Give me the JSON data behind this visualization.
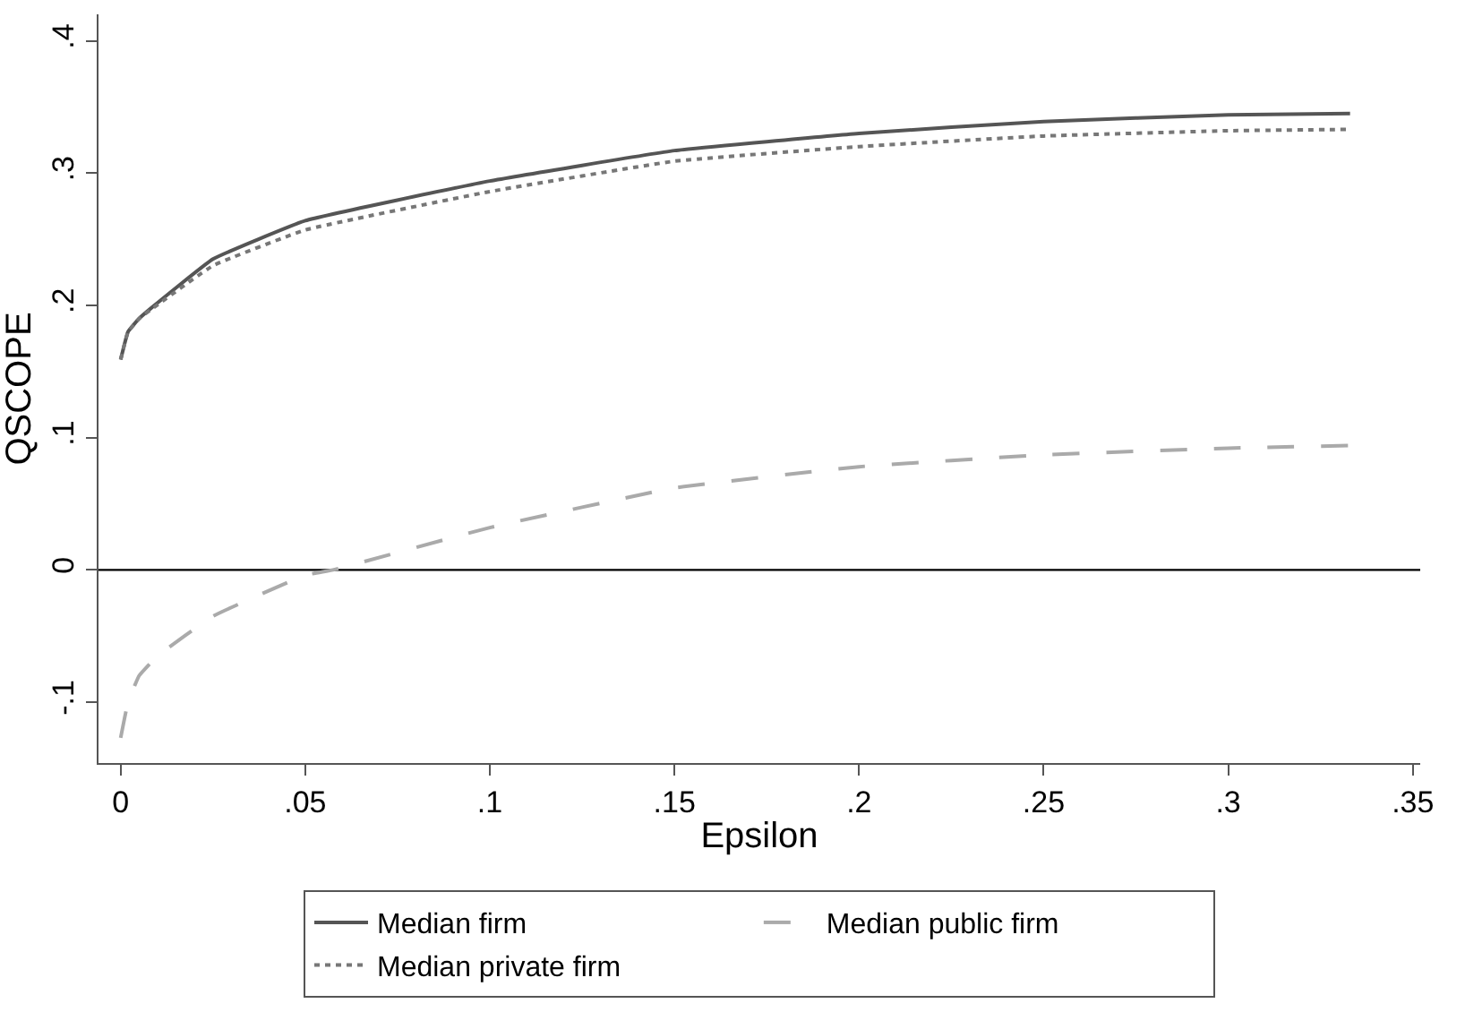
{
  "chart_data": {
    "type": "line",
    "xlabel": "Epsilon",
    "ylabel": "QSCOPE",
    "xlim": [
      -0.006,
      0.352
    ],
    "xticks": [
      {
        "value": 0,
        "label": "0"
      },
      {
        "value": 0.05,
        "label": ".05"
      },
      {
        "value": 0.1,
        "label": ".1"
      },
      {
        "value": 0.15,
        "label": ".15"
      },
      {
        "value": 0.2,
        "label": ".2"
      },
      {
        "value": 0.25,
        "label": ".25"
      },
      {
        "value": 0.3,
        "label": ".3"
      },
      {
        "value": 0.35,
        "label": ".35"
      }
    ],
    "ylim": [
      -0.146,
      0.42
    ],
    "yticks": [
      {
        "value": -0.1,
        "label": "-.1"
      },
      {
        "value": 0,
        "label": "0"
      },
      {
        "value": 0.1,
        "label": ".1"
      },
      {
        "value": 0.2,
        "label": ".2"
      },
      {
        "value": 0.3,
        "label": ".3"
      },
      {
        "value": 0.4,
        "label": ".4"
      }
    ],
    "grid": false,
    "legend": "bottom",
    "ref_lines": [
      {
        "axis": "y",
        "value": 0,
        "color": "#000000",
        "line_style": "solid"
      }
    ],
    "series": [
      {
        "name": "Median firm",
        "color": "#555555",
        "line_style": "solid",
        "x": [
          0,
          0.002,
          0.005,
          0.0083,
          0.025,
          0.05,
          0.1,
          0.15,
          0.2,
          0.25,
          0.3,
          0.333
        ],
        "values": [
          0.159,
          0.18,
          0.19,
          0.198,
          0.235,
          0.264,
          0.294,
          0.317,
          0.33,
          0.339,
          0.344,
          0.345
        ]
      },
      {
        "name": "Median public firm",
        "color": "#aaaaaa",
        "line_style": "longdash",
        "x": [
          0,
          0.002,
          0.005,
          0.01,
          0.025,
          0.05,
          0.0575,
          0.1,
          0.15,
          0.2,
          0.25,
          0.3,
          0.333
        ],
        "values": [
          -0.127,
          -0.1,
          -0.08,
          -0.065,
          -0.035,
          -0.004,
          0,
          0.032,
          0.062,
          0.078,
          0.087,
          0.092,
          0.094
        ]
      },
      {
        "name": "Median private firm",
        "color": "#777777",
        "line_style": "dotted",
        "x": [
          0,
          0.002,
          0.005,
          0.0083,
          0.025,
          0.05,
          0.1,
          0.15,
          0.2,
          0.25,
          0.3,
          0.333
        ],
        "values": [
          0.159,
          0.18,
          0.19,
          0.197,
          0.23,
          0.257,
          0.286,
          0.309,
          0.32,
          0.328,
          0.332,
          0.333
        ]
      }
    ]
  }
}
